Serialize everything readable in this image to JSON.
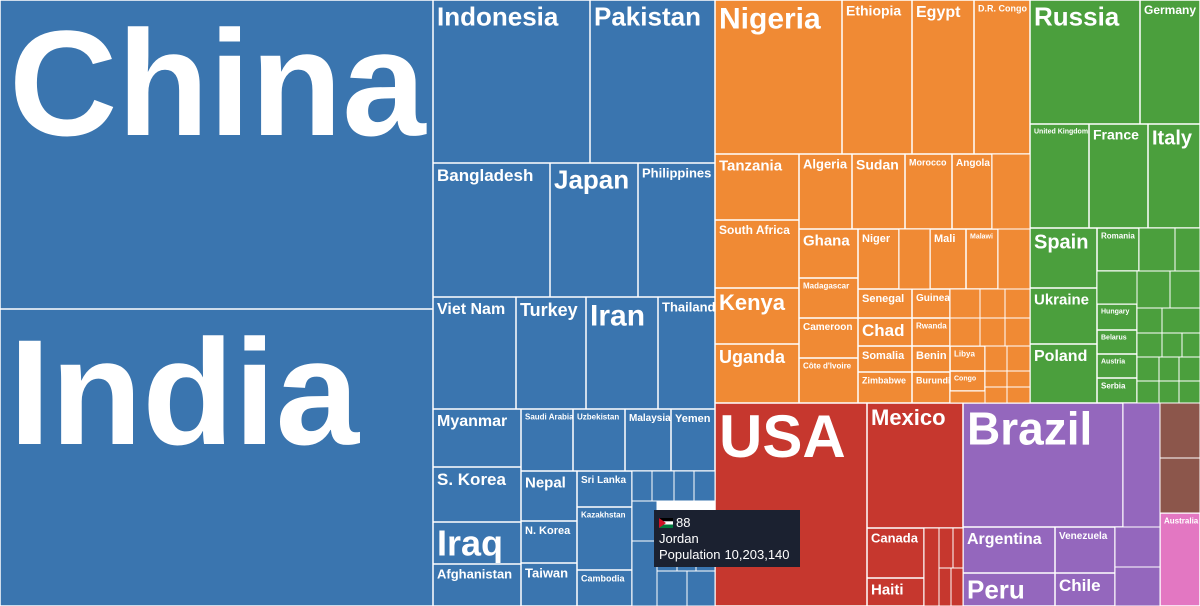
{
  "tiles": [
    {
      "label": "China"
    },
    {
      "label": "India"
    },
    {
      "label": "Indonesia"
    },
    {
      "label": "Pakistan"
    },
    {
      "label": "Bangladesh"
    },
    {
      "label": "Japan"
    },
    {
      "label": "Philippines"
    },
    {
      "label": "Viet Nam"
    },
    {
      "label": "Turkey"
    },
    {
      "label": "Iran"
    },
    {
      "label": "Thailand"
    },
    {
      "label": "Myanmar"
    },
    {
      "label": "Saudi Arabia"
    },
    {
      "label": "Uzbekistan"
    },
    {
      "label": "Malaysia"
    },
    {
      "label": "Yemen"
    },
    {
      "label": "S. Korea"
    },
    {
      "label": "Nepal"
    },
    {
      "label": "Sri Lanka"
    },
    {
      "label": "Iraq"
    },
    {
      "label": "N. Korea"
    },
    {
      "label": "Kazakhstan"
    },
    {
      "label": "Afghanistan"
    },
    {
      "label": "Taiwan"
    },
    {
      "label": "Cambodia"
    },
    {
      "label": "Nigeria"
    },
    {
      "label": "Ethiopia"
    },
    {
      "label": "Egypt"
    },
    {
      "label": "D.R. Congo"
    },
    {
      "label": "Tanzania"
    },
    {
      "label": "Algeria"
    },
    {
      "label": "Sudan"
    },
    {
      "label": "Morocco"
    },
    {
      "label": "Angola"
    },
    {
      "label": "South Africa"
    },
    {
      "label": "Ghana"
    },
    {
      "label": "Niger"
    },
    {
      "label": "Mali"
    },
    {
      "label": "Malawi"
    },
    {
      "label": "Kenya"
    },
    {
      "label": "Madagascar"
    },
    {
      "label": "Cameroon"
    },
    {
      "label": "Côte d'Ivoire"
    },
    {
      "label": "Uganda"
    },
    {
      "label": "Senegal"
    },
    {
      "label": "Guinea"
    },
    {
      "label": "Chad"
    },
    {
      "label": "Rwanda"
    },
    {
      "label": "Somalia"
    },
    {
      "label": "Benin"
    },
    {
      "label": "Zimbabwe"
    },
    {
      "label": "Burundi"
    },
    {
      "label": "Libya"
    },
    {
      "label": "Congo"
    },
    {
      "label": "Russia"
    },
    {
      "label": "Germany"
    },
    {
      "label": "United Kingdom"
    },
    {
      "label": "France"
    },
    {
      "label": "Italy"
    },
    {
      "label": "Spain"
    },
    {
      "label": "Romania"
    },
    {
      "label": "Ukraine"
    },
    {
      "label": "Hungary"
    },
    {
      "label": "Belarus"
    },
    {
      "label": "Poland"
    },
    {
      "label": "Austria"
    },
    {
      "label": "Serbia"
    },
    {
      "label": "USA"
    },
    {
      "label": "Mexico"
    },
    {
      "label": "Canada"
    },
    {
      "label": "Haiti"
    },
    {
      "label": "Brazil"
    },
    {
      "label": "Argentina"
    },
    {
      "label": "Venezuela"
    },
    {
      "label": "Peru"
    },
    {
      "label": "Chile"
    },
    {
      "label": "Australia"
    }
  ],
  "tooltip": {
    "rank": "88",
    "name": "Jordan",
    "population_label": "Population",
    "population": "10,203,140"
  }
}
